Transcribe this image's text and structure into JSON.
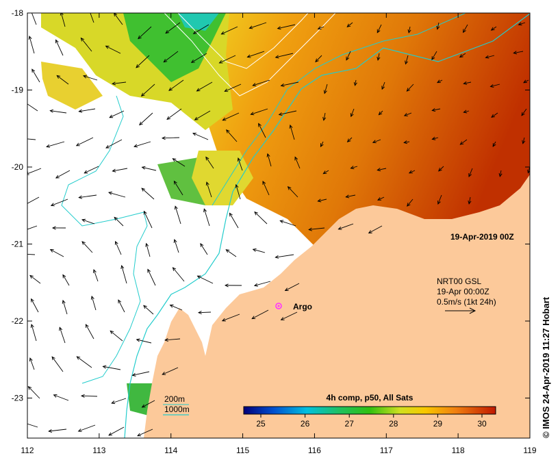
{
  "map": {
    "date_label": "19-Apr-2019 00Z",
    "x_ticks": [
      "112",
      "113",
      "114",
      "115",
      "116",
      "117",
      "118",
      "119"
    ],
    "y_ticks": [
      "-18",
      "-19",
      "-20",
      "-21",
      "-22",
      "-23"
    ],
    "credit": "© IMOS 24-Apr-2019 11:27 Hobart"
  },
  "current_legend": {
    "source": "NRT00 GSL",
    "time": "19-Apr 00:00Z",
    "scale": "0.5m/s (1kt 24h)"
  },
  "marker": {
    "label": "Argo",
    "color": "#ff33ff"
  },
  "bathymetry_legend": {
    "contour_200": "200m",
    "contour_1000": "1000m"
  },
  "colorbar": {
    "title": "4h comp, p50, All Sats",
    "ticks": [
      "25",
      "26",
      "27",
      "28",
      "29",
      "30"
    ]
  },
  "colors": {
    "land": "#fcc99a",
    "contour": "#22cccc",
    "hot": "#d45a05",
    "warm": "#e88a10"
  }
}
